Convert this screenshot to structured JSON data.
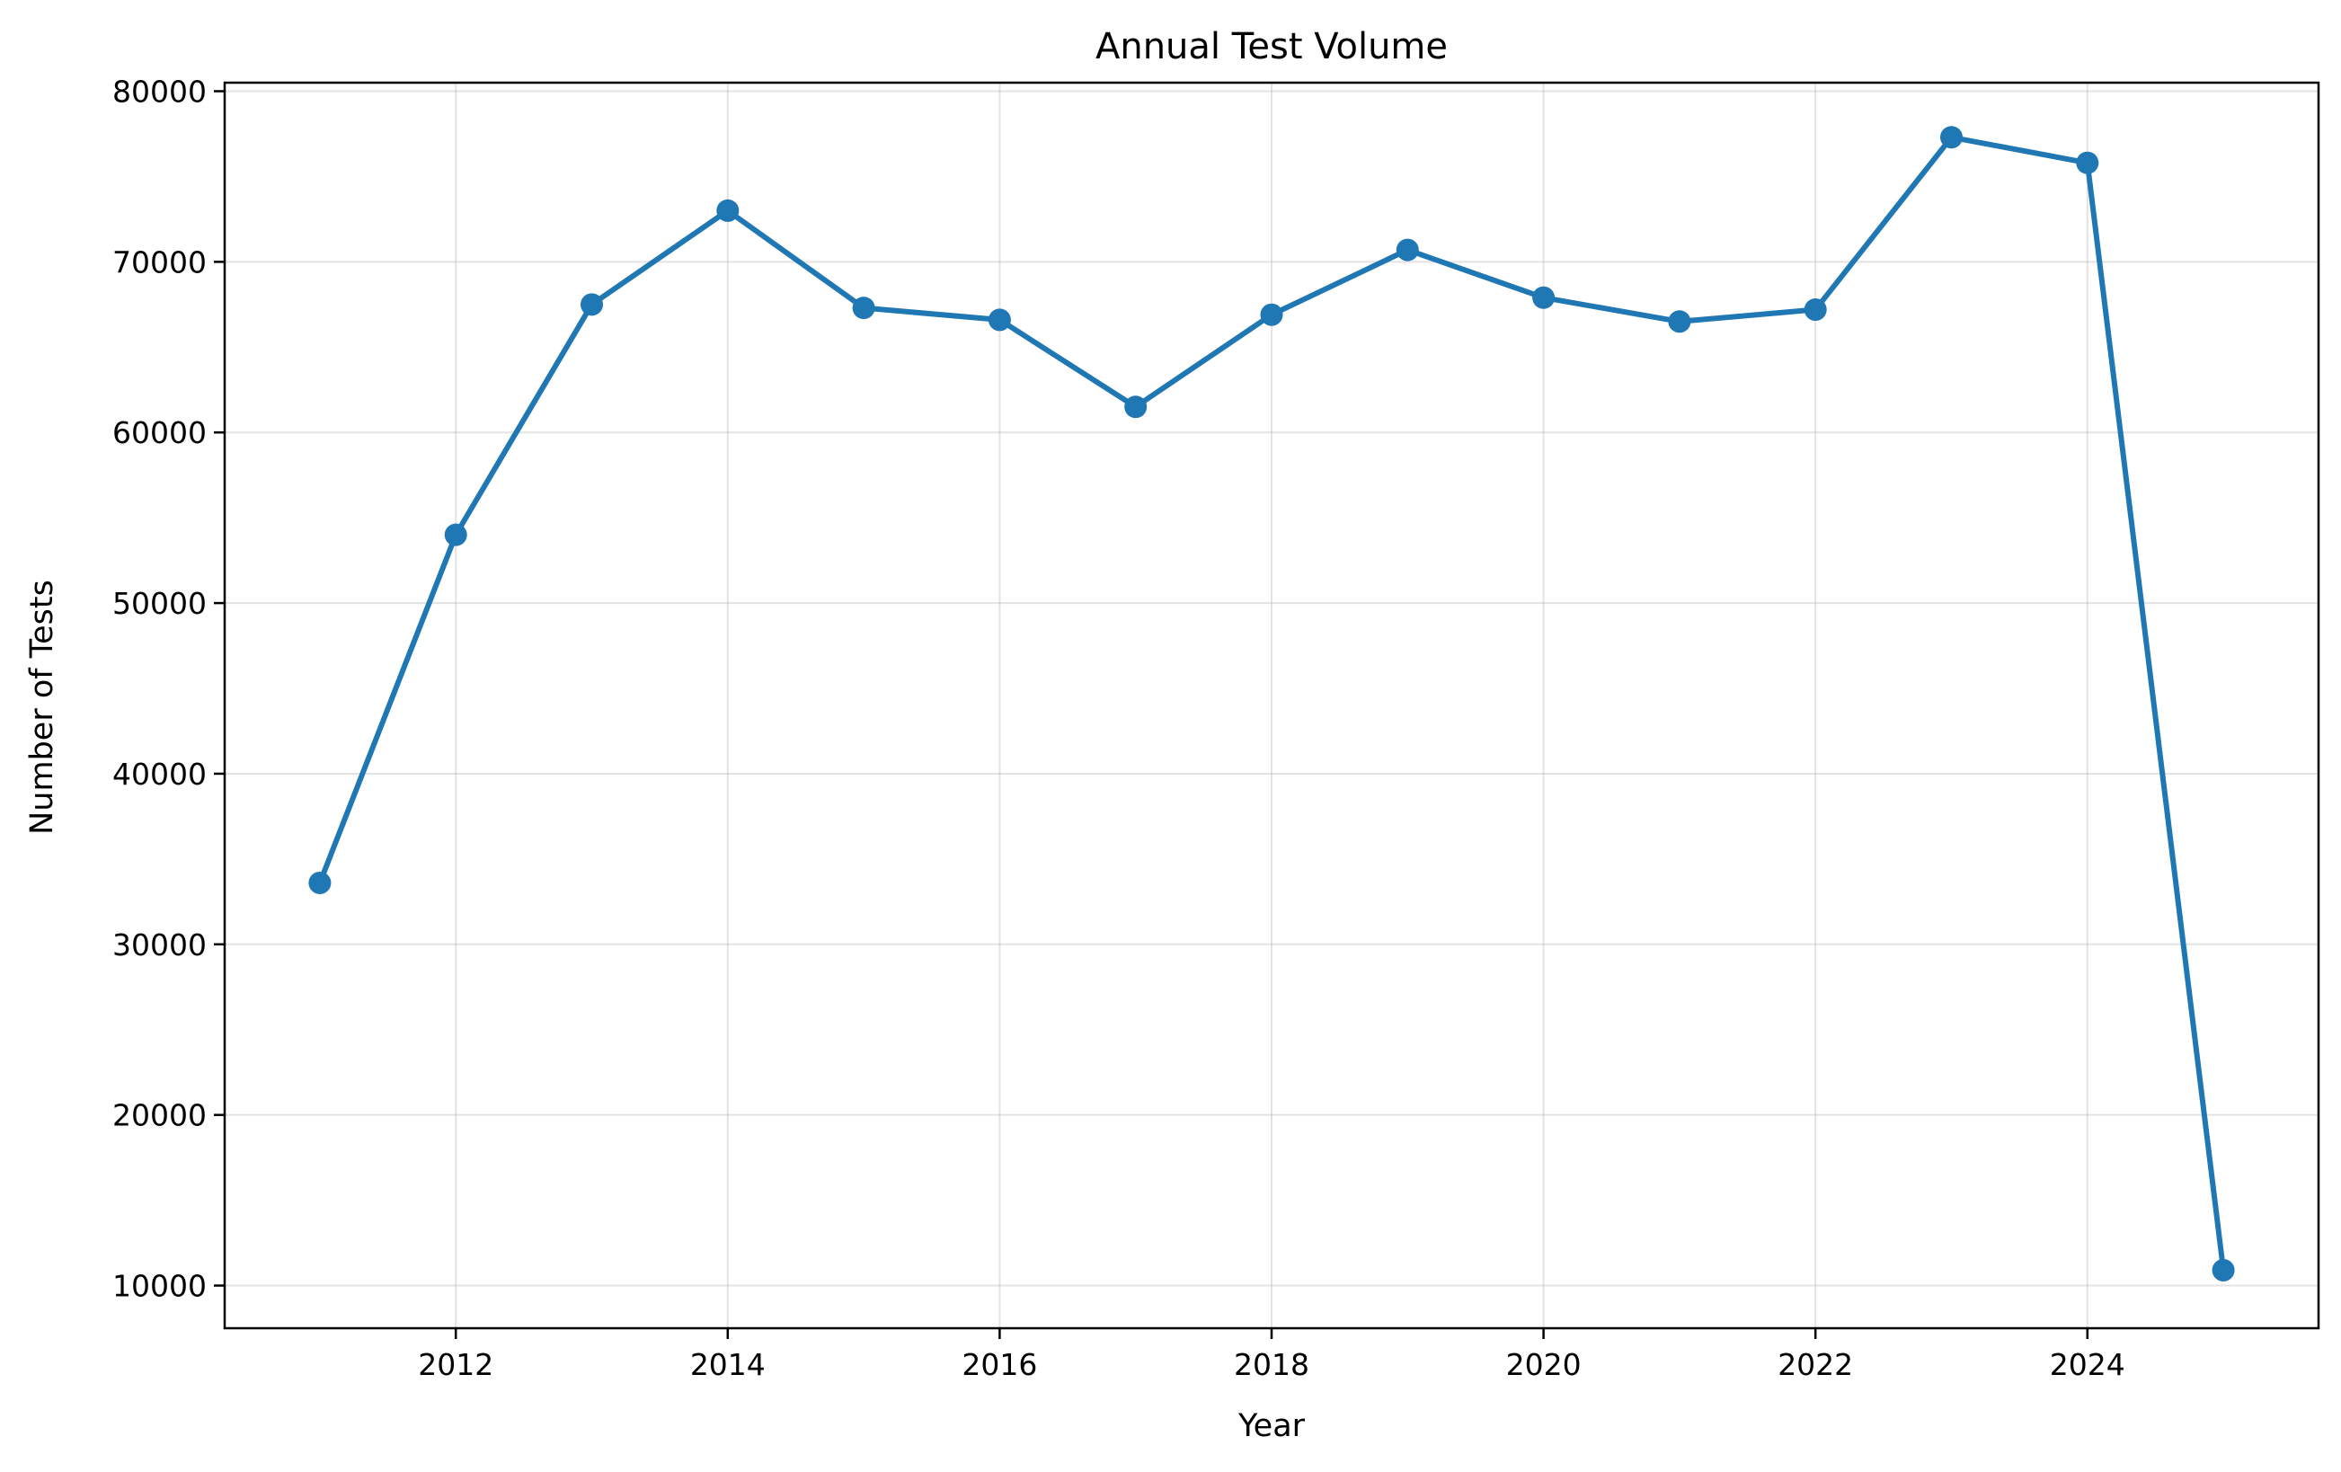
{
  "chart_data": {
    "type": "line",
    "title": "Annual Test Volume",
    "xlabel": "Year",
    "ylabel": "Number of Tests",
    "xlim": [
      2010.3,
      2025.7
    ],
    "ylim": [
      7500,
      80500
    ],
    "xticks": [
      2012,
      2014,
      2016,
      2018,
      2020,
      2022,
      2024
    ],
    "yticks": [
      10000,
      20000,
      30000,
      40000,
      50000,
      60000,
      70000,
      80000
    ],
    "grid": true,
    "series": [
      {
        "color": "#1f77b4",
        "x": [
          2011,
          2012,
          2013,
          2014,
          2015,
          2016,
          2017,
          2018,
          2019,
          2020,
          2021,
          2022,
          2023,
          2024,
          2025
        ],
        "y": [
          33600,
          54000,
          67500,
          73000,
          67300,
          66600,
          61500,
          66900,
          70700,
          67900,
          66500,
          67200,
          77300,
          75800,
          10900
        ]
      }
    ]
  }
}
